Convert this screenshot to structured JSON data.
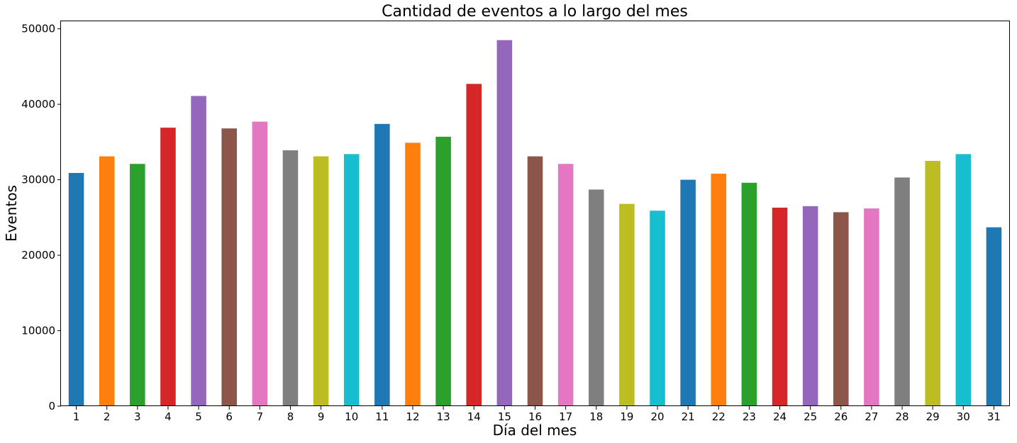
{
  "chart_data": {
    "type": "bar",
    "title": "Cantidad de eventos a lo largo del mes",
    "xlabel": "Día del mes",
    "ylabel": "Eventos",
    "ylim": [
      0,
      51000
    ],
    "yticks": [
      "0",
      "10000",
      "20000",
      "30000",
      "40000",
      "50000"
    ],
    "categories": [
      "1",
      "2",
      "3",
      "4",
      "5",
      "6",
      "7",
      "8",
      "9",
      "10",
      "11",
      "12",
      "13",
      "14",
      "15",
      "16",
      "17",
      "18",
      "19",
      "20",
      "21",
      "22",
      "23",
      "24",
      "25",
      "26",
      "27",
      "28",
      "29",
      "30",
      "31"
    ],
    "values": [
      30900,
      33100,
      32100,
      36900,
      41100,
      36800,
      37700,
      33900,
      33100,
      33400,
      37400,
      34900,
      35700,
      42700,
      48500,
      33100,
      32100,
      28700,
      26800,
      25900,
      30000,
      30800,
      29600,
      26300,
      26500,
      25700,
      26200,
      30300,
      32500,
      33400,
      23700
    ],
    "colors": [
      "#1f77b4",
      "#ff7f0e",
      "#2ca02c",
      "#d62728",
      "#9467bd",
      "#8c564b",
      "#e377c2",
      "#7f7f7f",
      "#bcbd22",
      "#17becf"
    ],
    "grid": false,
    "legend": "none"
  }
}
